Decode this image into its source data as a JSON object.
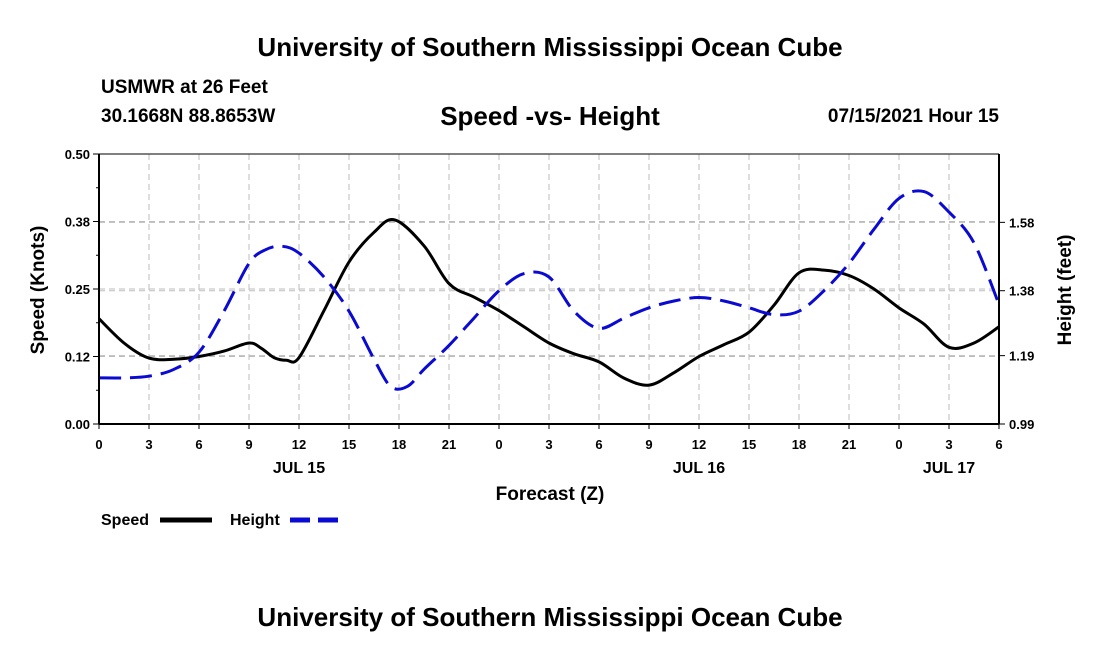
{
  "header": {
    "org_title": "University of Southern Mississippi Ocean Cube",
    "station": "USMWR at 26 Feet",
    "coords": "30.1668N  88.8653W",
    "chart_title": "Speed -vs- Height",
    "datetime": "07/15/2021 Hour 15"
  },
  "footer": {
    "org_title": "University of Southern Mississippi Ocean Cube"
  },
  "colors": {
    "speed": "#000000",
    "height": "#0a0ad2",
    "grid": "#bdbdbd"
  },
  "chart_data": {
    "type": "line",
    "title": "Speed -vs- Height",
    "xlabel": "Forecast (Z)",
    "ylabel": "Speed (Knots)",
    "y2label": "Height (feet)",
    "xlim": [
      0,
      54
    ],
    "ylim": [
      0,
      0.5
    ],
    "y2lim": [
      0.99,
      1.78
    ],
    "x_ticks": [
      0,
      3,
      6,
      9,
      12,
      15,
      18,
      21,
      24,
      27,
      30,
      33,
      36,
      39,
      42,
      45,
      48,
      51,
      54
    ],
    "x_tick_labels": [
      "0",
      "3",
      "6",
      "9",
      "12",
      "15",
      "18",
      "21",
      "0",
      "3",
      "6",
      "9",
      "12",
      "15",
      "18",
      "21",
      "0",
      "3",
      "6"
    ],
    "day_labels": [
      {
        "x": 12,
        "label": "JUL 15"
      },
      {
        "x": 36,
        "label": "JUL 16"
      },
      {
        "x": 51,
        "label": "JUL 17"
      }
    ],
    "y_ticks": [
      0,
      0.125,
      0.25,
      0.375,
      0.5
    ],
    "y_tick_labels": [
      "0.00",
      "0.12",
      "0.25",
      "0.38",
      "0.50"
    ],
    "y2_ticks": [
      0.99,
      1.19,
      1.38,
      1.58
    ],
    "y2_tick_labels": [
      "0.99",
      "1.19",
      "1.38",
      "1.58"
    ],
    "grid": true,
    "legend_position": "bottom-left",
    "series": [
      {
        "name": "Speed",
        "axis": "left",
        "style": "solid",
        "x": [
          0,
          1.5,
          3,
          4.5,
          6,
          7.5,
          9,
          9.75,
          10.5,
          11.25,
          12,
          13.5,
          15,
          16.5,
          17.75,
          19.5,
          21,
          22.5,
          24,
          25.5,
          27,
          28.5,
          30,
          31.5,
          33,
          34.5,
          36,
          37.5,
          39,
          40.5,
          42,
          43.5,
          45,
          46.5,
          48,
          49.5,
          51,
          52.5,
          54
        ],
        "values": [
          0.195,
          0.15,
          0.122,
          0.12,
          0.125,
          0.135,
          0.15,
          0.14,
          0.123,
          0.118,
          0.123,
          0.21,
          0.3,
          0.355,
          0.378,
          0.33,
          0.26,
          0.235,
          0.21,
          0.18,
          0.15,
          0.13,
          0.115,
          0.085,
          0.072,
          0.095,
          0.125,
          0.147,
          0.17,
          0.22,
          0.28,
          0.285,
          0.275,
          0.25,
          0.215,
          0.185,
          0.142,
          0.15,
          0.18
        ]
      },
      {
        "name": "Height",
        "axis": "right",
        "style": "dashed",
        "x": [
          0,
          1.5,
          3,
          4.5,
          6,
          7.5,
          9,
          10,
          11,
          12,
          13.5,
          15,
          16.5,
          17.5,
          18.5,
          19.5,
          21,
          22.5,
          24,
          25.5,
          27,
          28.5,
          30,
          31.5,
          33,
          34.5,
          36,
          37.5,
          39,
          40.5,
          42,
          43.5,
          45,
          46.5,
          48,
          49.5,
          51,
          52.5,
          54
        ],
        "values": [
          1.125,
          1.125,
          1.13,
          1.15,
          1.2,
          1.32,
          1.46,
          1.5,
          1.51,
          1.49,
          1.42,
          1.32,
          1.18,
          1.1,
          1.1,
          1.15,
          1.22,
          1.3,
          1.38,
          1.43,
          1.42,
          1.32,
          1.27,
          1.3,
          1.33,
          1.35,
          1.36,
          1.35,
          1.33,
          1.31,
          1.32,
          1.38,
          1.46,
          1.56,
          1.65,
          1.67,
          1.61,
          1.52,
          1.34
        ]
      }
    ]
  }
}
